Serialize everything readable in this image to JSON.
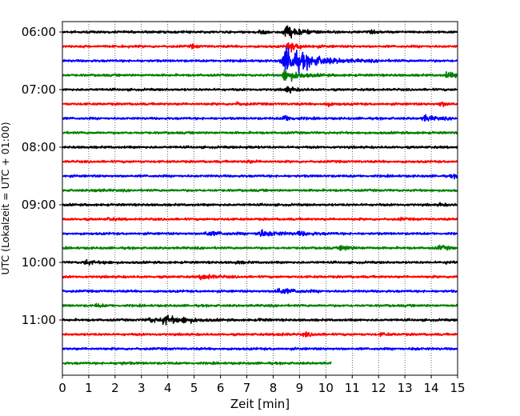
{
  "chart_data": {
    "type": "line",
    "title": "",
    "xlabel": "Zeit  [min]",
    "ylabel": "UTC (Lokalzeit = UTC + 01:00)",
    "xlim": [
      0,
      15
    ],
    "x_ticks": [
      0,
      1,
      2,
      3,
      4,
      5,
      6,
      7,
      8,
      9,
      10,
      11,
      12,
      13,
      14,
      15
    ],
    "y_tick_labels": [
      "06:00",
      "07:00",
      "08:00",
      "09:00",
      "10:00",
      "11:00"
    ],
    "grid": "vertical dotted",
    "trace_minutes": 15,
    "trace_colors": [
      "#000000",
      "#ff0000",
      "#0000ff",
      "#008000"
    ],
    "traces": [
      {
        "start": "06:00",
        "color": "#000000",
        "end_min": 15,
        "events": [
          {
            "t": 7.5,
            "amp": 0.35,
            "dur": 0.3
          },
          {
            "t": 8.5,
            "amp": 1.2,
            "dur": 0.5
          },
          {
            "t": 11.7,
            "amp": 0.2,
            "dur": 0.2
          }
        ]
      },
      {
        "start": "06:15",
        "color": "#ff0000",
        "end_min": 15,
        "events": [
          {
            "t": 4.9,
            "amp": 0.3,
            "dur": 0.2
          },
          {
            "t": 8.6,
            "amp": 0.8,
            "dur": 0.4
          }
        ]
      },
      {
        "start": "06:30",
        "color": "#0000ff",
        "end_min": 15,
        "events": [
          {
            "t": 8.55,
            "amp": 2.6,
            "dur": 0.9
          }
        ]
      },
      {
        "start": "06:45",
        "color": "#008000",
        "end_min": 15,
        "events": [
          {
            "t": 8.45,
            "amp": 1.2,
            "dur": 0.5
          },
          {
            "t": 14.6,
            "amp": 0.5,
            "dur": 0.4
          }
        ]
      },
      {
        "start": "07:00",
        "color": "#000000",
        "end_min": 15,
        "events": [
          {
            "t": 8.5,
            "amp": 0.6,
            "dur": 0.3
          }
        ]
      },
      {
        "start": "07:15",
        "color": "#ff0000",
        "end_min": 15,
        "events": [
          {
            "t": 6.6,
            "amp": 0.3,
            "dur": 0.2
          },
          {
            "t": 10.0,
            "amp": 0.4,
            "dur": 0.2
          },
          {
            "t": 14.35,
            "amp": 0.4,
            "dur": 0.3
          }
        ]
      },
      {
        "start": "07:30",
        "color": "#0000ff",
        "end_min": 15,
        "events": [
          {
            "t": 8.4,
            "amp": 0.6,
            "dur": 0.3
          },
          {
            "t": 13.75,
            "amp": 0.55,
            "dur": 0.4
          }
        ]
      },
      {
        "start": "07:45",
        "color": "#008000",
        "end_min": 15,
        "events": []
      },
      {
        "start": "08:00",
        "color": "#000000",
        "end_min": 15,
        "events": [
          {
            "t": 7.0,
            "amp": 0.2,
            "dur": 0.2
          }
        ]
      },
      {
        "start": "08:15",
        "color": "#ff0000",
        "end_min": 15,
        "events": [
          {
            "t": 7.0,
            "amp": 0.2,
            "dur": 0.3
          }
        ]
      },
      {
        "start": "08:30",
        "color": "#0000ff",
        "end_min": 15,
        "events": [
          {
            "t": 14.8,
            "amp": 0.25,
            "dur": 0.3
          }
        ]
      },
      {
        "start": "08:45",
        "color": "#008000",
        "end_min": 15,
        "events": [
          {
            "t": 1.2,
            "amp": 0.2,
            "dur": 0.3
          }
        ]
      },
      {
        "start": "09:00",
        "color": "#000000",
        "end_min": 15,
        "events": [
          {
            "t": 14.3,
            "amp": 0.25,
            "dur": 0.2
          }
        ]
      },
      {
        "start": "09:15",
        "color": "#ff0000",
        "end_min": 15,
        "events": [
          {
            "t": 1.75,
            "amp": 0.25,
            "dur": 0.2
          },
          {
            "t": 12.8,
            "amp": 0.2,
            "dur": 0.2
          }
        ]
      },
      {
        "start": "09:30",
        "color": "#0000ff",
        "end_min": 15,
        "events": [
          {
            "t": 5.5,
            "amp": 0.35,
            "dur": 0.6
          },
          {
            "t": 7.5,
            "amp": 0.65,
            "dur": 0.6
          },
          {
            "t": 9.0,
            "amp": 0.3,
            "dur": 0.5
          }
        ]
      },
      {
        "start": "09:45",
        "color": "#008000",
        "end_min": 15,
        "events": [
          {
            "t": 10.6,
            "amp": 0.55,
            "dur": 0.3
          },
          {
            "t": 14.3,
            "amp": 0.35,
            "dur": 0.4
          }
        ]
      },
      {
        "start": "10:00",
        "color": "#000000",
        "end_min": 15,
        "events": [
          {
            "t": 0.85,
            "amp": 0.55,
            "dur": 0.25
          },
          {
            "t": 1.6,
            "amp": 0.2,
            "dur": 0.2
          },
          {
            "t": 6.6,
            "amp": 0.25,
            "dur": 0.2
          },
          {
            "t": 14.6,
            "amp": 0.25,
            "dur": 0.2
          }
        ]
      },
      {
        "start": "10:15",
        "color": "#ff0000",
        "end_min": 15,
        "events": [
          {
            "t": 5.3,
            "amp": 0.65,
            "dur": 0.35
          },
          {
            "t": 14.9,
            "amp": 0.4,
            "dur": 0.2
          }
        ]
      },
      {
        "start": "10:30",
        "color": "#0000ff",
        "end_min": 15,
        "events": [
          {
            "t": 8.2,
            "amp": 0.55,
            "dur": 0.6
          }
        ]
      },
      {
        "start": "10:45",
        "color": "#008000",
        "end_min": 15,
        "events": [
          {
            "t": 1.3,
            "amp": 0.3,
            "dur": 0.2
          }
        ]
      },
      {
        "start": "11:00",
        "color": "#000000",
        "end_min": 15,
        "events": [
          {
            "t": 3.3,
            "amp": 0.4,
            "dur": 0.6
          },
          {
            "t": 3.9,
            "amp": 0.75,
            "dur": 0.5
          },
          {
            "t": 4.6,
            "amp": 0.3,
            "dur": 0.5
          },
          {
            "t": 7.5,
            "amp": 0.2,
            "dur": 0.2
          }
        ]
      },
      {
        "start": "11:15",
        "color": "#ff0000",
        "end_min": 15,
        "events": [
          {
            "t": 8.2,
            "amp": 0.2,
            "dur": 0.3
          },
          {
            "t": 9.2,
            "amp": 0.35,
            "dur": 0.3
          },
          {
            "t": 12.1,
            "amp": 0.2,
            "dur": 0.3
          }
        ]
      },
      {
        "start": "11:30",
        "color": "#0000ff",
        "end_min": 15,
        "events": [
          {
            "t": 13.3,
            "amp": 0.2,
            "dur": 0.2
          }
        ]
      },
      {
        "start": "11:45",
        "color": "#008000",
        "end_min": 10.2,
        "events": [
          {
            "t": 2.1,
            "amp": 0.2,
            "dur": 0.3
          }
        ]
      }
    ]
  }
}
